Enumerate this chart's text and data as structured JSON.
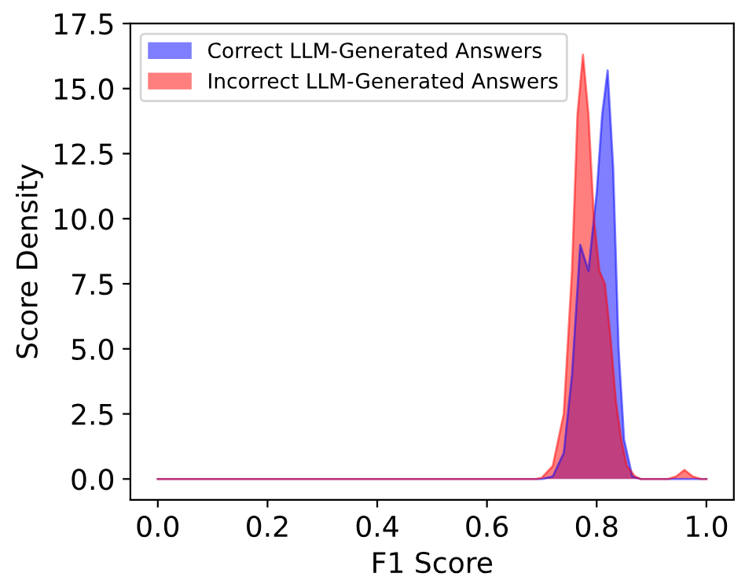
{
  "chart_data": {
    "type": "area",
    "xlabel": "F1 Score",
    "ylabel": "Score Density",
    "xlim": [
      -0.05,
      1.05
    ],
    "ylim": [
      -0.8,
      17.5
    ],
    "xticks": [
      {
        "value": 0.0,
        "label": "0.0"
      },
      0.2,
      0.4,
      0.6,
      0.8,
      {
        "value": 1.0,
        "label": "1.0"
      }
    ],
    "yticks": [
      {
        "value": 0.0,
        "label": "0.0"
      },
      2.5,
      {
        "value": 5.0,
        "label": "5.0"
      },
      7.5,
      {
        "value": 10.0,
        "label": "10.0"
      },
      12.5,
      {
        "value": 15.0,
        "label": "15.0"
      },
      17.5
    ],
    "grid": false,
    "legend": "top left",
    "series": [
      {
        "name": "Correct LLM-Generated Answers",
        "color": "#0000ff",
        "x": [
          0.0,
          0.7,
          0.72,
          0.74,
          0.755,
          0.77,
          0.785,
          0.8,
          0.81,
          0.82,
          0.83,
          0.84,
          0.85,
          0.865,
          0.88,
          1.0
        ],
        "values": [
          0,
          0,
          0.1,
          1,
          4,
          9,
          8,
          11,
          14,
          15.7,
          12,
          5,
          1.5,
          0.1,
          0,
          0
        ]
      },
      {
        "name": "Incorrect LLM-Generated Answers",
        "color": "#ff0000",
        "x": [
          0.0,
          0.69,
          0.7,
          0.72,
          0.74,
          0.755,
          0.765,
          0.775,
          0.785,
          0.795,
          0.805,
          0.815,
          0.825,
          0.835,
          0.845,
          0.855,
          0.87,
          0.88,
          0.93,
          0.945,
          0.96,
          0.975,
          0.99,
          1.0
        ],
        "values": [
          0,
          0,
          0.05,
          0.5,
          2.5,
          8,
          14,
          16.3,
          14,
          10,
          8,
          7.5,
          5.5,
          3,
          1.5,
          0.5,
          0.1,
          0,
          0,
          0.1,
          0.35,
          0.1,
          0,
          0
        ]
      }
    ]
  }
}
